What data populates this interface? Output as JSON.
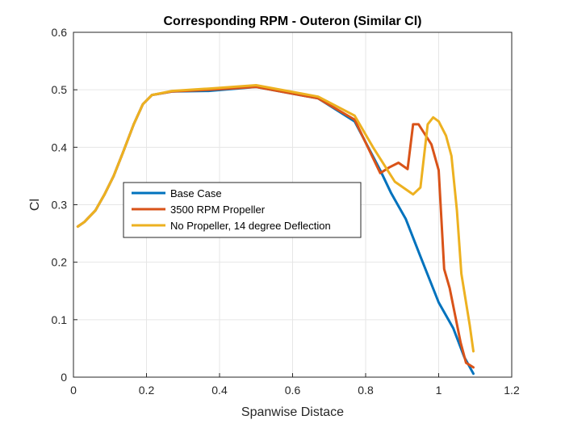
{
  "chart_data": {
    "type": "line",
    "title": "Corresponding RPM - Outeron (Similar Cl)",
    "xlabel": "Spanwise Distace",
    "ylabel": "Cl",
    "xlim": [
      0,
      1.2
    ],
    "ylim": [
      0,
      0.6
    ],
    "xticks": [
      "0",
      "0.2",
      "0.4",
      "0.6",
      "0.8",
      "1",
      "1.2"
    ],
    "yticks": [
      "0",
      "0.1",
      "0.2",
      "0.3",
      "0.4",
      "0.5",
      "0.6"
    ],
    "grid": true,
    "legend_position": "center-left",
    "series": [
      {
        "name": "Base Case",
        "color": "#0072BD",
        "x": [
          0.012,
          0.03,
          0.06,
          0.085,
          0.11,
          0.135,
          0.165,
          0.19,
          0.215,
          0.27,
          0.37,
          0.5,
          0.67,
          0.77,
          0.84,
          0.87,
          0.91,
          0.95,
          1.0,
          1.04,
          1.07,
          1.095
        ],
        "y": [
          0.262,
          0.27,
          0.29,
          0.318,
          0.35,
          0.39,
          0.44,
          0.475,
          0.491,
          0.497,
          0.498,
          0.505,
          0.485,
          0.445,
          0.36,
          0.32,
          0.275,
          0.21,
          0.13,
          0.085,
          0.035,
          0.006
        ]
      },
      {
        "name": "3500 RPM Propeller",
        "color": "#D95319",
        "x": [
          0.012,
          0.03,
          0.06,
          0.085,
          0.11,
          0.135,
          0.165,
          0.19,
          0.215,
          0.27,
          0.37,
          0.5,
          0.67,
          0.77,
          0.84,
          0.865,
          0.89,
          0.915,
          0.93,
          0.945,
          0.955,
          0.98,
          1.0,
          1.015,
          1.03,
          1.06,
          1.075,
          1.095
        ],
        "y": [
          0.262,
          0.27,
          0.29,
          0.318,
          0.35,
          0.39,
          0.44,
          0.475,
          0.491,
          0.497,
          0.5,
          0.505,
          0.485,
          0.448,
          0.355,
          0.365,
          0.373,
          0.362,
          0.44,
          0.44,
          0.43,
          0.405,
          0.36,
          0.188,
          0.155,
          0.06,
          0.025,
          0.017
        ]
      },
      {
        "name": "No Propeller, 14 degree Deflection",
        "color": "#EDB120",
        "x": [
          0.012,
          0.03,
          0.06,
          0.085,
          0.11,
          0.135,
          0.165,
          0.19,
          0.215,
          0.27,
          0.37,
          0.5,
          0.67,
          0.77,
          0.82,
          0.88,
          0.93,
          0.95,
          0.97,
          0.985,
          1.0,
          1.02,
          1.035,
          1.05,
          1.062,
          1.075,
          1.085,
          1.095
        ],
        "y": [
          0.262,
          0.27,
          0.29,
          0.318,
          0.35,
          0.39,
          0.44,
          0.475,
          0.491,
          0.498,
          0.502,
          0.508,
          0.488,
          0.455,
          0.4,
          0.34,
          0.318,
          0.33,
          0.44,
          0.452,
          0.445,
          0.42,
          0.385,
          0.29,
          0.18,
          0.13,
          0.09,
          0.045
        ]
      }
    ]
  }
}
